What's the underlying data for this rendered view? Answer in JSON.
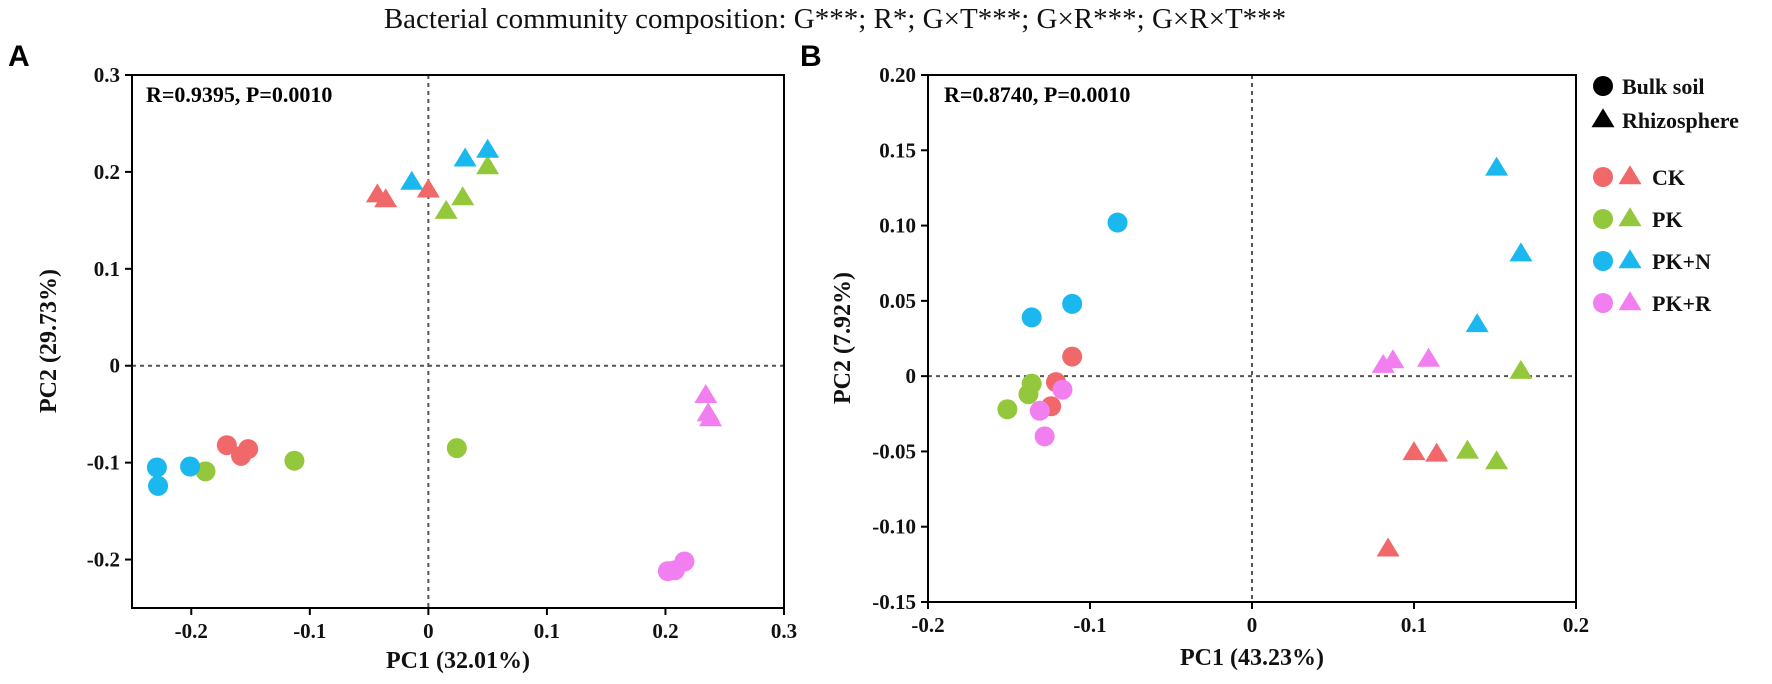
{
  "figure_title": "Bacterial community composition: G***; R*; G×T***; G×R***; G×R×T***",
  "colors": {
    "CK": "#f0686a",
    "PK": "#94c83c",
    "PK+N": "#1ab8ef",
    "PK+R": "#f27ff0",
    "legend_shape": "#000000"
  },
  "legend": {
    "shapes": [
      {
        "label": "Bulk soil",
        "marker": "circle"
      },
      {
        "label": "Rhizosphere",
        "marker": "triangle"
      }
    ],
    "groups": [
      {
        "label": "CK",
        "key": "CK"
      },
      {
        "label": "PK",
        "key": "PK"
      },
      {
        "label": "PK+N",
        "key": "PK+N"
      },
      {
        "label": "PK+R",
        "key": "PK+R"
      }
    ]
  },
  "chart_data": [
    {
      "panel": "A",
      "type": "scatter",
      "stat": "R=0.9395, P=0.0010",
      "xlabel": "PC1 (32.01%)",
      "ylabel": "PC2 (29.73%)",
      "xlim": [
        -0.25,
        0.3
      ],
      "ylim": [
        -0.25,
        0.3
      ],
      "xticks": [
        -0.2,
        -0.1,
        0,
        0.1,
        0.2,
        0.3
      ],
      "xtick_labels": [
        "-0.2",
        "-0.1",
        "0",
        "0.1",
        "0.2",
        "0.3"
      ],
      "yticks": [
        -0.2,
        -0.1,
        0,
        0.1,
        0.2,
        0.3
      ],
      "ytick_labels": [
        "-0.2",
        "-0.1",
        "0",
        "0.1",
        "0.2",
        "0.3"
      ],
      "reference_lines": {
        "x": 0,
        "y": 0
      },
      "series": [
        {
          "group": "CK",
          "marker": "circle",
          "points": [
            [
              -0.17,
              -0.082
            ],
            [
              -0.158,
              -0.093
            ],
            [
              -0.152,
              -0.086
            ]
          ]
        },
        {
          "group": "CK",
          "marker": "triangle",
          "points": [
            [
              -0.043,
              0.176
            ],
            [
              -0.036,
              0.171
            ],
            [
              0.0,
              0.181
            ]
          ]
        },
        {
          "group": "PK",
          "marker": "circle",
          "points": [
            [
              -0.188,
              -0.109
            ],
            [
              -0.113,
              -0.098
            ],
            [
              0.024,
              -0.085
            ]
          ]
        },
        {
          "group": "PK",
          "marker": "triangle",
          "points": [
            [
              0.015,
              0.159
            ],
            [
              0.029,
              0.173
            ],
            [
              0.05,
              0.205
            ]
          ]
        },
        {
          "group": "PK+N",
          "marker": "circle",
          "points": [
            [
              -0.229,
              -0.105
            ],
            [
              -0.228,
              -0.124
            ],
            [
              -0.201,
              -0.104
            ]
          ]
        },
        {
          "group": "PK+N",
          "marker": "triangle",
          "points": [
            [
              -0.014,
              0.189
            ],
            [
              0.031,
              0.213
            ],
            [
              0.05,
              0.222
            ]
          ]
        },
        {
          "group": "PK+R",
          "marker": "circle",
          "points": [
            [
              0.202,
              -0.212
            ],
            [
              0.208,
              -0.211
            ],
            [
              0.216,
              -0.202
            ]
          ]
        },
        {
          "group": "PK+R",
          "marker": "triangle",
          "points": [
            [
              0.234,
              -0.031
            ],
            [
              0.236,
              -0.05
            ],
            [
              0.238,
              -0.055
            ]
          ]
        }
      ]
    },
    {
      "panel": "B",
      "type": "scatter",
      "stat": "R=0.8740, P=0.0010",
      "xlabel": "PC1 (43.23%)",
      "ylabel": "PC2 (7.92%)",
      "xlim": [
        -0.2,
        0.2
      ],
      "ylim": [
        -0.15,
        0.2
      ],
      "xticks": [
        -0.2,
        -0.1,
        0,
        0.1,
        0.2
      ],
      "xtick_labels": [
        "-0.2",
        "-0.1",
        "0",
        "0.1",
        "0.2"
      ],
      "yticks": [
        -0.15,
        -0.1,
        -0.05,
        0,
        0.05,
        0.1,
        0.15,
        0.2
      ],
      "ytick_labels": [
        "-0.15",
        "-0.10",
        "-0.05",
        "0",
        "0.05",
        "0.10",
        "0.15",
        "0.20"
      ],
      "reference_lines": {
        "x": 0,
        "y": 0
      },
      "series": [
        {
          "group": "CK",
          "marker": "circle",
          "points": [
            [
              -0.111,
              0.013
            ],
            [
              -0.121,
              -0.004
            ],
            [
              -0.124,
              -0.02
            ]
          ]
        },
        {
          "group": "CK",
          "marker": "triangle",
          "points": [
            [
              0.1,
              -0.051
            ],
            [
              0.114,
              -0.052
            ],
            [
              0.084,
              -0.115
            ]
          ]
        },
        {
          "group": "PK",
          "marker": "circle",
          "points": [
            [
              -0.151,
              -0.022
            ],
            [
              -0.136,
              -0.005
            ],
            [
              -0.138,
              -0.012
            ]
          ]
        },
        {
          "group": "PK",
          "marker": "triangle",
          "points": [
            [
              0.133,
              -0.05
            ],
            [
              0.151,
              -0.057
            ],
            [
              0.166,
              0.003
            ]
          ]
        },
        {
          "group": "PK+N",
          "marker": "circle",
          "points": [
            [
              -0.083,
              0.102
            ],
            [
              -0.111,
              0.048
            ],
            [
              -0.136,
              0.039
            ]
          ]
        },
        {
          "group": "PK+N",
          "marker": "triangle",
          "points": [
            [
              0.151,
              0.138
            ],
            [
              0.166,
              0.081
            ],
            [
              0.139,
              0.034
            ]
          ]
        },
        {
          "group": "PK+R",
          "marker": "circle",
          "points": [
            [
              -0.117,
              -0.009
            ],
            [
              -0.131,
              -0.023
            ],
            [
              -0.128,
              -0.04
            ]
          ]
        },
        {
          "group": "PK+R",
          "marker": "triangle",
          "points": [
            [
              0.081,
              0.007
            ],
            [
              0.087,
              0.01
            ],
            [
              0.109,
              0.011
            ]
          ]
        }
      ]
    }
  ]
}
